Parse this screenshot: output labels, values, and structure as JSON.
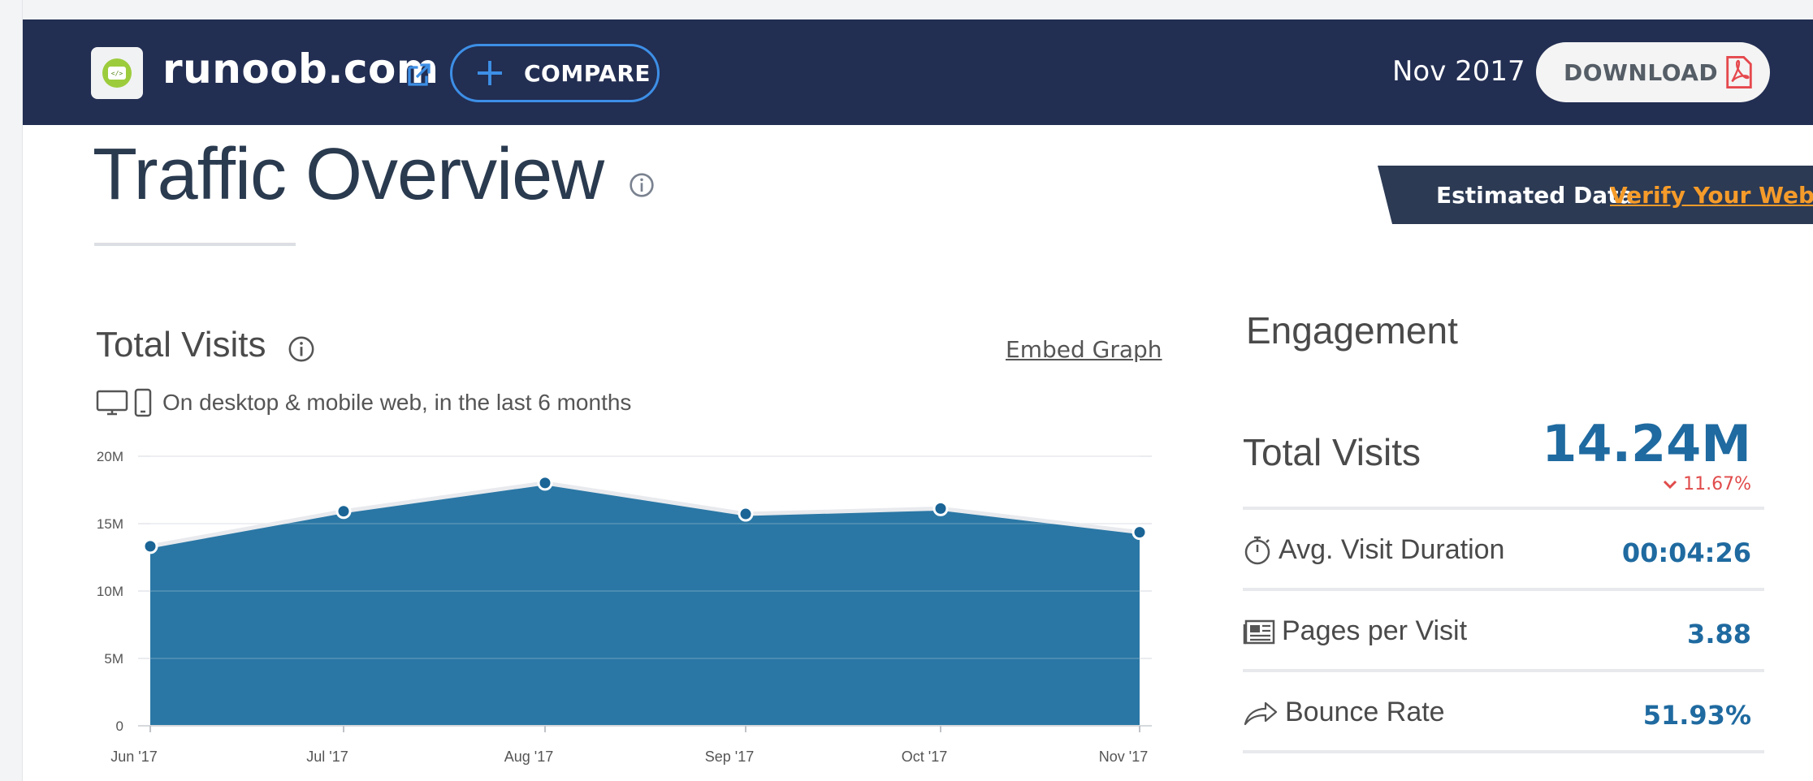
{
  "header": {
    "site_name": "runoob.com",
    "compare_label": "COMPARE",
    "date": "Nov 2017",
    "download_label": "DOWNLOAD"
  },
  "page": {
    "title": "Traffic Overview"
  },
  "banner": {
    "estimated": "Estimated Data",
    "verify": "Verify Your Website"
  },
  "total_visits_card": {
    "title": "Total Visits",
    "embed": "Embed Graph",
    "devices_text": "On desktop & mobile web, in the last 6 months"
  },
  "chart_data": {
    "type": "area",
    "categories": [
      "Jun '17",
      "Jul '17",
      "Aug '17",
      "Sep '17",
      "Oct '17",
      "Nov '17"
    ],
    "series": [
      {
        "values": [
          13.2,
          15.8,
          17.9,
          15.6,
          16.0,
          14.24
        ]
      }
    ],
    "yticks": [
      "0",
      "5M",
      "10M",
      "15M",
      "20M"
    ],
    "ylim": [
      0,
      20
    ],
    "grid": true,
    "colors": {
      "fill": "#2a77a5",
      "line": "#e8eaee",
      "point": "#1a6496"
    }
  },
  "engagement": {
    "title": "Engagement",
    "total_visits_label": "Total Visits",
    "total_visits_value": "14.24M",
    "total_visits_change": "11.67%",
    "duration_label": "Avg. Visit Duration",
    "duration_value": "00:04:26",
    "pages_label": "Pages per Visit",
    "pages_value": "3.88",
    "bounce_label": "Bounce Rate",
    "bounce_value": "51.93%"
  }
}
